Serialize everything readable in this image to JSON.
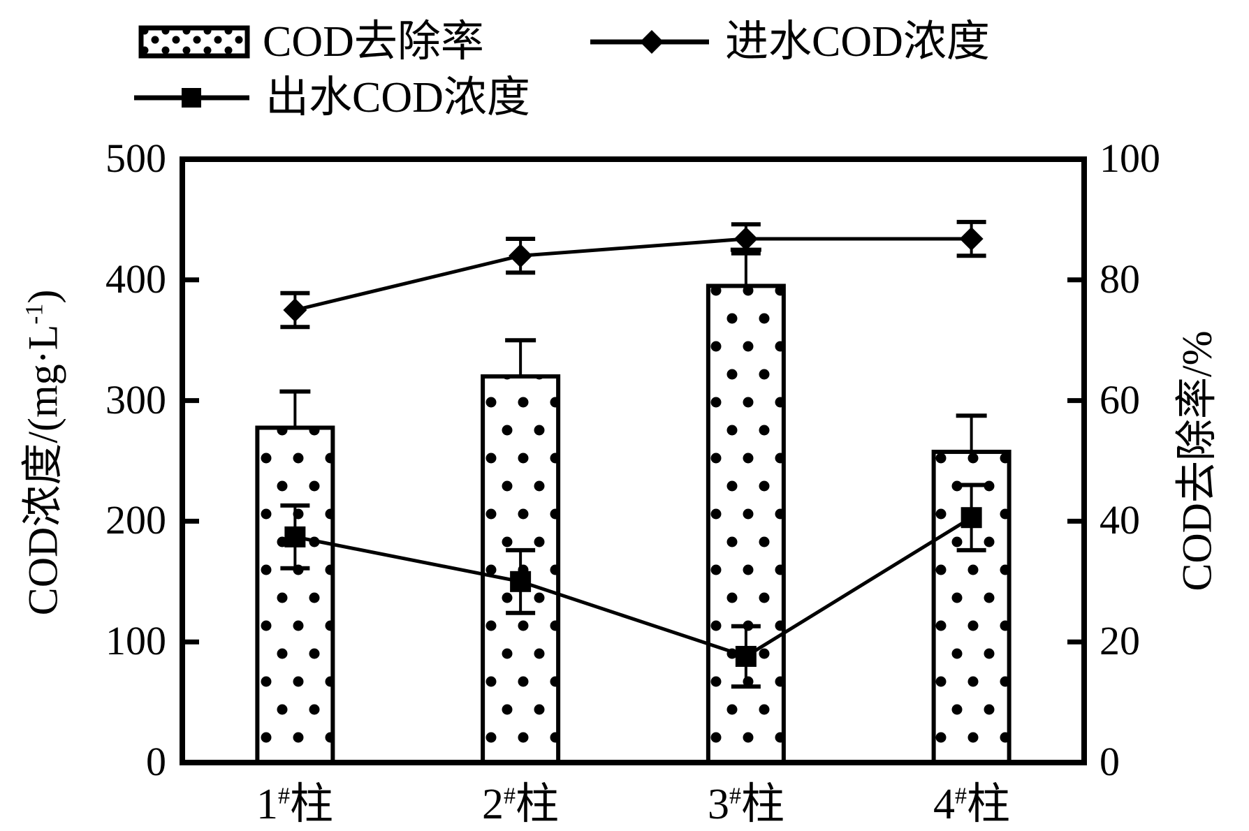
{
  "legend": {
    "bar_label": "COD去除率",
    "influent_label": "进水COD浓度",
    "effluent_label": "出水COD浓度"
  },
  "left_axis_title": {
    "pre": "COD浓度/(mg·L",
    "sup": "-1",
    "post": ")"
  },
  "right_axis_title": "COD去除率/%",
  "chart_data": {
    "type": "bar+line dual-axis",
    "title": "",
    "categories": [
      "1#柱",
      "2#柱",
      "3#柱",
      "4#柱"
    ],
    "categories_parts": [
      {
        "num": "1",
        "sup": "#",
        "suffix": "柱"
      },
      {
        "num": "2",
        "sup": "#",
        "suffix": "柱"
      },
      {
        "num": "3",
        "sup": "#",
        "suffix": "柱"
      },
      {
        "num": "4",
        "sup": "#",
        "suffix": "柱"
      }
    ],
    "bar_series": {
      "name": "COD去除率",
      "axis": "right",
      "unit": "%",
      "values": [
        55.5,
        64,
        79,
        51.5
      ],
      "errors_plus": [
        6,
        6,
        6,
        6
      ],
      "fill": "white with black polka dots",
      "stroke": "#000000"
    },
    "line_series": [
      {
        "name": "进水COD浓度",
        "marker": "diamond",
        "axis": "left",
        "unit": "mg·L-1",
        "values": [
          375,
          420,
          434,
          434
        ],
        "errors": [
          14,
          14,
          12,
          14
        ]
      },
      {
        "name": "出水COD浓度",
        "marker": "square",
        "axis": "left",
        "unit": "mg·L-1",
        "values": [
          187,
          150,
          88,
          203
        ],
        "errors": [
          26,
          26,
          25,
          27
        ]
      }
    ],
    "left_axis": {
      "label": "COD浓度/(mg·L⁻¹)",
      "min": 0,
      "max": 500,
      "ticks": [
        0,
        100,
        200,
        300,
        400,
        500
      ]
    },
    "right_axis": {
      "label": "COD去除率/%",
      "min": 0,
      "max": 100,
      "ticks": [
        0,
        20,
        40,
        60,
        80,
        100
      ]
    },
    "x_axis": {
      "labels": [
        "1#柱",
        "2#柱",
        "3#柱",
        "4#柱"
      ]
    },
    "colors": {
      "foreground": "#000000",
      "background": "#ffffff"
    },
    "grid": false,
    "legend_position": "top"
  }
}
